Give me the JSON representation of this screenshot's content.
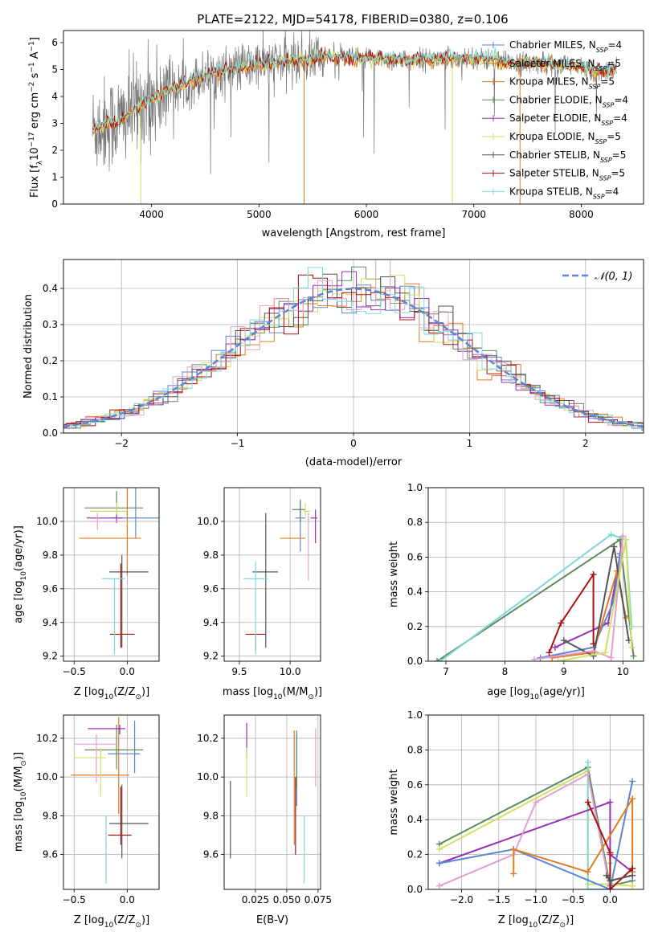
{
  "figure": {
    "title": "PLATE=2122, MJD=54178, FIBERID=0380, z=0.106"
  },
  "colors": {
    "c1": "#5b86d6",
    "c2": "#e07b20",
    "c3": "#5e8a5e",
    "c4": "#9930b8",
    "c5": "#d2e060",
    "c6": "#555555",
    "c7": "#aa1010",
    "c8": "#e2a0cc",
    "c9": "#7fd8d8",
    "data": "#777777"
  },
  "chart_data": [
    {
      "id": "spectrum",
      "type": "line",
      "title": "PLATE=2122, MJD=54178, FIBERID=0380, z=0.106",
      "xlabel": "wavelength [Angstrom, rest frame]",
      "ylabel_main": "Flux [f",
      "ylabel_sub": "λ",
      "ylabel_rest": "10",
      "ylabel_sup": "−17",
      "ylabel_tail": " erg cm",
      "xlim": [
        3180,
        8580
      ],
      "ylim": [
        0,
        6.45
      ],
      "xticks": [
        4000,
        5000,
        6000,
        7000,
        8000
      ],
      "yticks": [
        0,
        1,
        2,
        3,
        4,
        5,
        6
      ],
      "model_x": [
        3450,
        3700,
        3900,
        4200,
        4500,
        4800,
        5000,
        5300,
        5600,
        5800,
        6100,
        6400,
        6700,
        7000,
        7300,
        7600,
        7900,
        8200,
        8330
      ],
      "model_y": [
        2.8,
        3.1,
        3.7,
        4.3,
        4.8,
        5.05,
        5.2,
        5.3,
        5.5,
        5.45,
        5.4,
        5.35,
        5.4,
        5.45,
        5.25,
        5.25,
        5.15,
        4.9,
        5.0
      ],
      "legend": [
        {
          "label": "Chabrier MILES, N",
          "sub": "SSP",
          "tail": "=4",
          "color": "c1"
        },
        {
          "label": "Salpeter MILES, N",
          "sub": "SSP",
          "tail": "=5",
          "color": "c2"
        },
        {
          "label": "Kroupa MILES, N",
          "sub": "SSP",
          "tail": "=5",
          "color": "c2"
        },
        {
          "label": "Chabrier ELODIE, N",
          "sub": "SSP",
          "tail": "=4",
          "color": "c3"
        },
        {
          "label": "Salpeter ELODIE, N",
          "sub": "SSP",
          "tail": "=4",
          "color": "c4"
        },
        {
          "label": "Kroupa ELODIE, N",
          "sub": "SSP",
          "tail": "=5",
          "color": "c5"
        },
        {
          "label": "Chabrier STELIB, N",
          "sub": "SSP",
          "tail": "=5",
          "color": "c6"
        },
        {
          "label": "Salpeter STELIB, N",
          "sub": "SSP",
          "tail": "=5",
          "color": "c7"
        },
        {
          "label": "Kroupa STELIB, N",
          "sub": "SSP",
          "tail": "=4",
          "color": "c9"
        }
      ]
    },
    {
      "id": "residuals",
      "type": "line",
      "xlabel": "(data-model)/error",
      "ylabel": "Normed distribution",
      "xlim": [
        -2.5,
        2.5
      ],
      "ylim": [
        0,
        0.48
      ],
      "xticks": [
        -2,
        -1,
        0,
        1,
        2
      ],
      "yticks": [
        0.0,
        0.1,
        0.2,
        0.3,
        0.4
      ],
      "legend_label": "𝒩(0, 1)",
      "gaussian_mu": 0,
      "gaussian_sigma": 1
    },
    {
      "id": "age_vs_Z",
      "type": "scatter",
      "xlabel": "Z [log",
      "xlabel_sub": "10",
      "xlabel_rest": "(Z/Z",
      "ylabel": "age  [log",
      "ylabel_sub": "10",
      "ylabel_rest": "(age/yr)]",
      "xlim": [
        -0.6,
        0.3
      ],
      "ylim": [
        9.17,
        10.2
      ],
      "xticks": [
        -0.5,
        0.0
      ],
      "yticks": [
        9.2,
        9.4,
        9.6,
        9.8,
        10.0
      ],
      "points": [
        {
          "x": 0.08,
          "y": 10.02,
          "xe": [
            0.23,
            0.23
          ],
          "ye": [
            0.12,
            0.25
          ],
          "color": "c1"
        },
        {
          "x": 0.0,
          "y": 9.9,
          "xe": [
            0.45,
            0.13
          ],
          "ye": [
            0.22,
            0.52
          ],
          "color": "c2"
        },
        {
          "x": -0.1,
          "y": 10.08,
          "xe": [
            0.3,
            0.25
          ],
          "ye": [
            0.05,
            0.1
          ],
          "color": "c3"
        },
        {
          "x": -0.1,
          "y": 10.02,
          "xe": [
            0.28,
            0.05
          ],
          "ye": [
            0.03,
            0.05
          ],
          "color": "c4"
        },
        {
          "x": -0.1,
          "y": 10.06,
          "xe": [
            0.25,
            0.1
          ],
          "ye": [
            0.02,
            0.05
          ],
          "color": "c5"
        },
        {
          "x": -0.05,
          "y": 9.7,
          "xe": [
            0.12,
            0.25
          ],
          "ye": [
            0.45,
            0.1
          ],
          "color": "c6"
        },
        {
          "x": -0.06,
          "y": 9.33,
          "xe": [
            0.1,
            0.13
          ],
          "ye": [
            0.08,
            0.42
          ],
          "color": "c7"
        },
        {
          "x": -0.28,
          "y": 10.0,
          "xe": [
            0.1,
            0.3
          ],
          "ye": [
            0.05,
            0.05
          ],
          "color": "c8"
        },
        {
          "x": -0.12,
          "y": 9.66,
          "xe": [
            0.12,
            0.1
          ],
          "ye": [
            0.45,
            0.0
          ],
          "color": "c9"
        }
      ]
    },
    {
      "id": "age_vs_mass",
      "type": "scatter",
      "xlabel": "mass [log",
      "xlabel_sub": "10",
      "xlabel_rest": "(M/M",
      "xlim": [
        9.35,
        10.3
      ],
      "ylim": [
        9.17,
        10.2
      ],
      "xticks": [
        9.5,
        10.0
      ],
      "yticks": [
        9.2,
        9.4,
        9.6,
        9.8,
        10.0
      ],
      "points": [
        {
          "x": 10.1,
          "y": 10.02,
          "xe": [
            0.05,
            0.05
          ],
          "ye": [
            0.2,
            0.1
          ],
          "color": "c1"
        },
        {
          "x": 10.0,
          "y": 9.9,
          "xe": [
            0.1,
            0.15
          ],
          "ye": [
            0.0,
            0.0
          ],
          "color": "c2"
        },
        {
          "x": 10.1,
          "y": 10.07,
          "xe": [
            0.08,
            0.05
          ],
          "ye": [
            0.07,
            0.06
          ],
          "color": "c3"
        },
        {
          "x": 10.25,
          "y": 10.02,
          "xe": [
            0.05,
            0.02
          ],
          "ye": [
            0.15,
            0.05
          ],
          "color": "c4"
        },
        {
          "x": 10.15,
          "y": 10.06,
          "xe": [
            0.02,
            0.05
          ],
          "ye": [
            0.03,
            0.05
          ],
          "color": "c5"
        },
        {
          "x": 9.76,
          "y": 9.7,
          "xe": [
            0.13,
            0.12
          ],
          "ye": [
            0.45,
            0.35
          ],
          "color": "c6"
        },
        {
          "x": 9.66,
          "y": 9.33,
          "xe": [
            0.1,
            0.1
          ],
          "ye": [
            0.1,
            0.0
          ],
          "color": "c7"
        },
        {
          "x": 10.18,
          "y": 10.0,
          "xe": [
            0.0,
            0.0
          ],
          "ye": [
            0.35,
            0.05
          ],
          "color": "c8"
        },
        {
          "x": 9.66,
          "y": 9.66,
          "xe": [
            0.12,
            0.12
          ],
          "ye": [
            0.45,
            0.1
          ],
          "color": "c9"
        }
      ]
    },
    {
      "id": "weight_vs_age",
      "type": "line",
      "xlabel": "age  [log",
      "xlabel_sub": "10",
      "xlabel_rest": "(age/yr)]",
      "ylabel": "mass weight",
      "xlim": [
        6.7,
        10.35
      ],
      "ylim": [
        0,
        1.0
      ],
      "xticks": [
        7,
        8,
        9,
        10
      ],
      "yticks": [
        0.0,
        0.2,
        0.4,
        0.6,
        0.8,
        1.0
      ],
      "series": [
        {
          "color": "c3",
          "x": [
            6.85,
            9.95,
            10.1,
            10.18
          ],
          "y": [
            0.0,
            0.7,
            0.26,
            0.03
          ]
        },
        {
          "color": "c9",
          "x": [
            6.9,
            9.8,
            10.05,
            10.15
          ],
          "y": [
            0.0,
            0.73,
            0.7,
            0.2
          ]
        },
        {
          "color": "c4",
          "x": [
            8.85,
            9.75,
            9.95,
            10.0
          ],
          "y": [
            0.08,
            0.22,
            0.6,
            0.72
          ]
        },
        {
          "color": "c1",
          "x": [
            8.6,
            9.5,
            9.85,
            9.95
          ],
          "y": [
            0.02,
            0.08,
            0.35,
            0.62
          ]
        },
        {
          "color": "c2",
          "x": [
            8.8,
            9.5,
            9.9,
            10.05
          ],
          "y": [
            0.02,
            0.05,
            0.52,
            0.25
          ]
        },
        {
          "color": "c6",
          "x": [
            9.0,
            9.5,
            9.85,
            10.1
          ],
          "y": [
            0.12,
            0.03,
            0.66,
            0.12
          ]
        },
        {
          "color": "c7",
          "x": [
            8.75,
            8.95,
            9.5,
            9.5
          ],
          "y": [
            0.05,
            0.22,
            0.5,
            0.1
          ]
        },
        {
          "color": "c8",
          "x": [
            8.5,
            9.5,
            9.8,
            10.0
          ],
          "y": [
            0.01,
            0.06,
            0.02,
            0.72
          ]
        },
        {
          "color": "c5",
          "x": [
            8.9,
            9.7,
            10.05,
            10.15
          ],
          "y": [
            0.0,
            0.05,
            0.7,
            0.08
          ]
        }
      ]
    },
    {
      "id": "mass_vs_Z",
      "type": "scatter",
      "xlabel": "Z [log",
      "xlabel_sub": "10",
      "xlabel_rest": "(Z/Z",
      "ylabel": "mass [log",
      "ylabel_sub": "10",
      "ylabel_rest": "(M/M",
      "xlim": [
        -0.6,
        0.3
      ],
      "ylim": [
        9.42,
        10.32
      ],
      "xticks": [
        -0.5,
        0.0
      ],
      "yticks": [
        9.6,
        9.8,
        10.0,
        10.2
      ],
      "points": [
        {
          "x": 0.07,
          "y": 10.12,
          "xe": [
            0.25,
            0.05
          ],
          "ye": [
            0.1,
            0.17
          ],
          "color": "c1"
        },
        {
          "x": -0.08,
          "y": 10.01,
          "xe": [
            0.45,
            0.1
          ],
          "ye": [
            0.2,
            0.3
          ],
          "color": "c2"
        },
        {
          "x": -0.1,
          "y": 10.14,
          "xe": [
            0.3,
            0.25
          ],
          "ye": [
            0.1,
            0.13
          ],
          "color": "c3"
        },
        {
          "x": -0.07,
          "y": 10.25,
          "xe": [
            0.3,
            0.05
          ],
          "ye": [
            0.03,
            0.02
          ],
          "color": "c4"
        },
        {
          "x": -0.25,
          "y": 10.1,
          "xe": [
            0.25,
            0.05
          ],
          "ye": [
            0.2,
            0.05
          ],
          "color": "c5"
        },
        {
          "x": -0.05,
          "y": 9.76,
          "xe": [
            0.12,
            0.25
          ],
          "ye": [
            0.18,
            0.2
          ],
          "color": "c6"
        },
        {
          "x": -0.06,
          "y": 9.7,
          "xe": [
            0.12,
            0.1
          ],
          "ye": [
            0.05,
            0.25
          ],
          "color": "c7"
        },
        {
          "x": -0.29,
          "y": 10.17,
          "xe": [
            0.21,
            0.2
          ],
          "ye": [
            0.2,
            0.05
          ],
          "color": "c8"
        },
        {
          "x": -0.2,
          "y": 9.8,
          "xe": [
            0.0,
            0.0
          ],
          "ye": [
            0.35,
            0.0
          ],
          "color": "c9"
        }
      ]
    },
    {
      "id": "mass_vs_ebv",
      "type": "scatter",
      "xlabel": "E(B-V)",
      "xlim": [
        0.0,
        0.077
      ],
      "ylim": [
        9.42,
        10.32
      ],
      "xticks": [
        0.025,
        0.05,
        0.075
      ],
      "xticklabels": [
        "0.025",
        "0.050",
        "0.075"
      ],
      "yticks": [
        9.6,
        9.8,
        10.0,
        10.2
      ],
      "points": [
        {
          "x": 0.058,
          "y": 10.12,
          "xe": [
            0,
            0
          ],
          "ye": [
            0.27,
            0.1
          ],
          "color": "c1"
        },
        {
          "x": 0.056,
          "y": 10.01,
          "xe": [
            0,
            0
          ],
          "ye": [
            0.36,
            0.23
          ],
          "color": "c2"
        },
        {
          "x": 0.058,
          "y": 10.14,
          "xe": [
            0,
            0
          ],
          "ye": [
            0.2,
            0.1
          ],
          "color": "c3"
        },
        {
          "x": 0.018,
          "y": 10.2,
          "xe": [
            0,
            0
          ],
          "ye": [
            0.1,
            0.08
          ],
          "color": "c4"
        },
        {
          "x": 0.018,
          "y": 10.1,
          "xe": [
            0,
            0
          ],
          "ye": [
            0.2,
            0.05
          ],
          "color": "c5"
        },
        {
          "x": 0.005,
          "y": 9.76,
          "xe": [
            0,
            0
          ],
          "ye": [
            0.18,
            0.22
          ],
          "color": "c6"
        },
        {
          "x": 0.057,
          "y": 9.7,
          "xe": [
            0,
            0
          ],
          "ye": [
            0.1,
            0.3
          ],
          "color": "c7"
        },
        {
          "x": 0.073,
          "y": 10.1,
          "xe": [
            0,
            0
          ],
          "ye": [
            0.15,
            0.15
          ],
          "color": "c8"
        },
        {
          "x": 0.064,
          "y": 9.6,
          "xe": [
            0,
            0
          ],
          "ye": [
            0.15,
            0.2
          ],
          "color": "c9"
        }
      ]
    },
    {
      "id": "weight_vs_Z",
      "type": "line",
      "xlabel": "Z [log",
      "xlabel_sub": "10",
      "xlabel_rest": "(Z/Z",
      "ylabel": "mass weight",
      "xlim": [
        -2.45,
        0.45
      ],
      "ylim": [
        0,
        1.0
      ],
      "xticks": [
        -2.0,
        -1.5,
        -1.0,
        -0.5,
        0.0
      ],
      "yticks": [
        0.0,
        0.2,
        0.4,
        0.6,
        0.8,
        1.0
      ],
      "series": [
        {
          "color": "c3",
          "x": [
            -2.3,
            -0.3,
            0.0,
            0.3
          ],
          "y": [
            0.26,
            0.7,
            0.02,
            0.05
          ]
        },
        {
          "color": "c5",
          "x": [
            -2.3,
            -0.3,
            -0.3,
            0.0,
            0.3
          ],
          "y": [
            0.23,
            0.68,
            0.03,
            0.03,
            0.02
          ]
        },
        {
          "color": "c9",
          "x": [
            -0.3,
            -0.3,
            0.0,
            0.0
          ],
          "y": [
            0.73,
            0.0,
            0.0,
            0.15
          ]
        },
        {
          "color": "c4",
          "x": [
            -2.3,
            0.0,
            0.0,
            0.3
          ],
          "y": [
            0.15,
            0.5,
            0.2,
            0.1
          ]
        },
        {
          "color": "c1",
          "x": [
            -2.3,
            -1.3,
            0.0,
            0.3
          ],
          "y": [
            0.15,
            0.23,
            0.0,
            0.62
          ]
        },
        {
          "color": "c8",
          "x": [
            -2.3,
            -1.3,
            -1.0,
            -0.3,
            0.0
          ],
          "y": [
            0.02,
            0.2,
            0.5,
            0.66,
            0.0
          ]
        },
        {
          "color": "c2",
          "x": [
            -1.3,
            -1.3,
            -0.3,
            0.3,
            0.3
          ],
          "y": [
            0.09,
            0.23,
            0.1,
            0.52,
            0.1
          ]
        },
        {
          "color": "c7",
          "x": [
            -0.3,
            0.0,
            0.0,
            0.3
          ],
          "y": [
            0.5,
            0.21,
            0.0,
            0.12
          ]
        },
        {
          "color": "c6",
          "x": [
            -0.05,
            0.0,
            0.3
          ],
          "y": [
            0.08,
            0.05,
            0.08
          ]
        }
      ]
    }
  ]
}
